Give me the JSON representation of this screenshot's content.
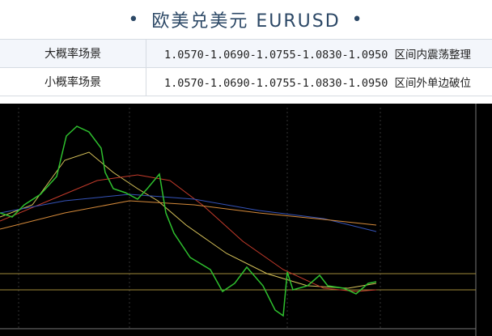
{
  "header": {
    "title": "欧美兑美元 EURUSD"
  },
  "table": {
    "rows": [
      [
        "大概率场景",
        "1.0570-1.0690-1.0755-1.0830-1.0950 区间内震荡整理"
      ],
      [
        "小概率场景",
        "1.0570-1.0690-1.0755-1.0830-1.0950 区间外单边破位"
      ]
    ]
  }
}
